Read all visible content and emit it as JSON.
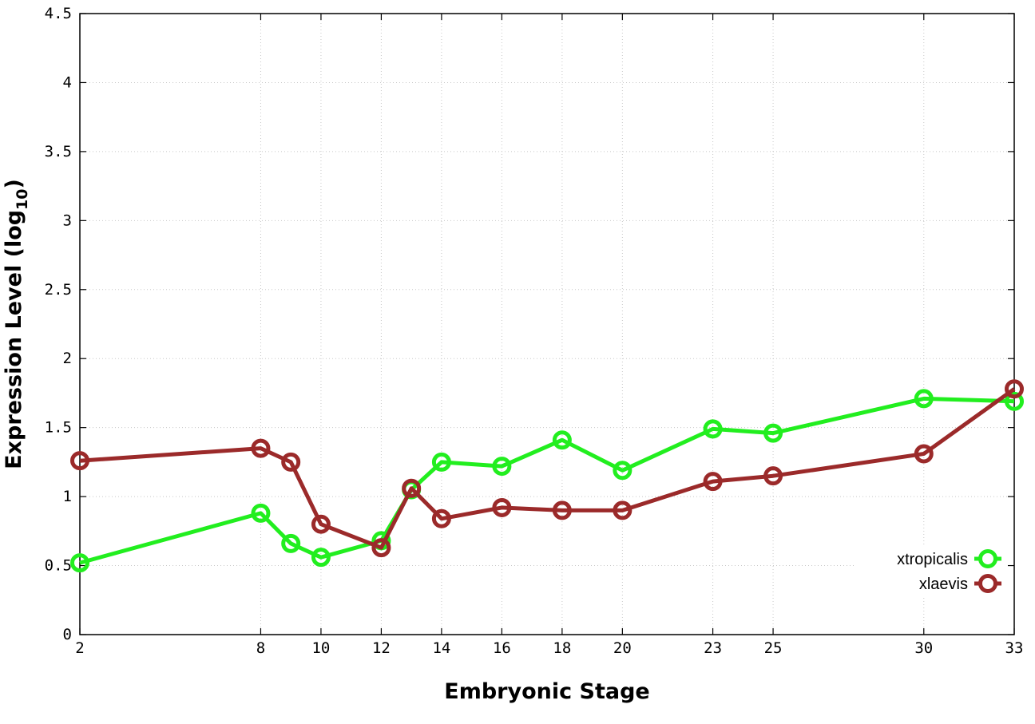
{
  "chart_data": {
    "type": "line",
    "title": "",
    "xlabel": "Embryonic Stage",
    "ylabel_main": "Expression Level (log",
    "ylabel_sub": "10",
    "ylabel_close": ")",
    "xlim": [
      2,
      33
    ],
    "ylim": [
      0,
      4.5
    ],
    "x_ticks": [
      2,
      8,
      10,
      12,
      14,
      16,
      18,
      20,
      23,
      25,
      30,
      33
    ],
    "x_tick_labels": [
      "2",
      "8",
      "10",
      "12",
      "14",
      "16",
      "18",
      "20",
      "23",
      "25",
      "30",
      "33"
    ],
    "y_ticks": [
      0,
      0.5,
      1,
      1.5,
      2,
      2.5,
      3,
      3.5,
      4,
      4.5
    ],
    "y_tick_labels": [
      "0",
      "0.5",
      "1",
      "1.5",
      "2",
      "2.5",
      "3",
      "3.5",
      "4",
      "4.5"
    ],
    "grid": true,
    "legend_position": "bottom-right",
    "series": [
      {
        "name": "xtropicalis",
        "color": "#22ee1f",
        "x": [
          2,
          8,
          9,
          10,
          12,
          13,
          14,
          16,
          18,
          20,
          23,
          25,
          30,
          33
        ],
        "y": [
          0.52,
          0.88,
          0.66,
          0.56,
          0.68,
          1.05,
          1.25,
          1.22,
          1.41,
          1.19,
          1.49,
          1.46,
          1.71,
          1.69
        ]
      },
      {
        "name": "xlaevis",
        "color": "#9b2a2a",
        "x": [
          2,
          8,
          9,
          10,
          12,
          13,
          14,
          16,
          18,
          20,
          23,
          25,
          30,
          33
        ],
        "y": [
          1.26,
          1.35,
          1.25,
          0.8,
          0.63,
          1.06,
          0.84,
          0.92,
          0.9,
          0.9,
          1.11,
          1.15,
          1.31,
          1.78
        ]
      }
    ]
  }
}
